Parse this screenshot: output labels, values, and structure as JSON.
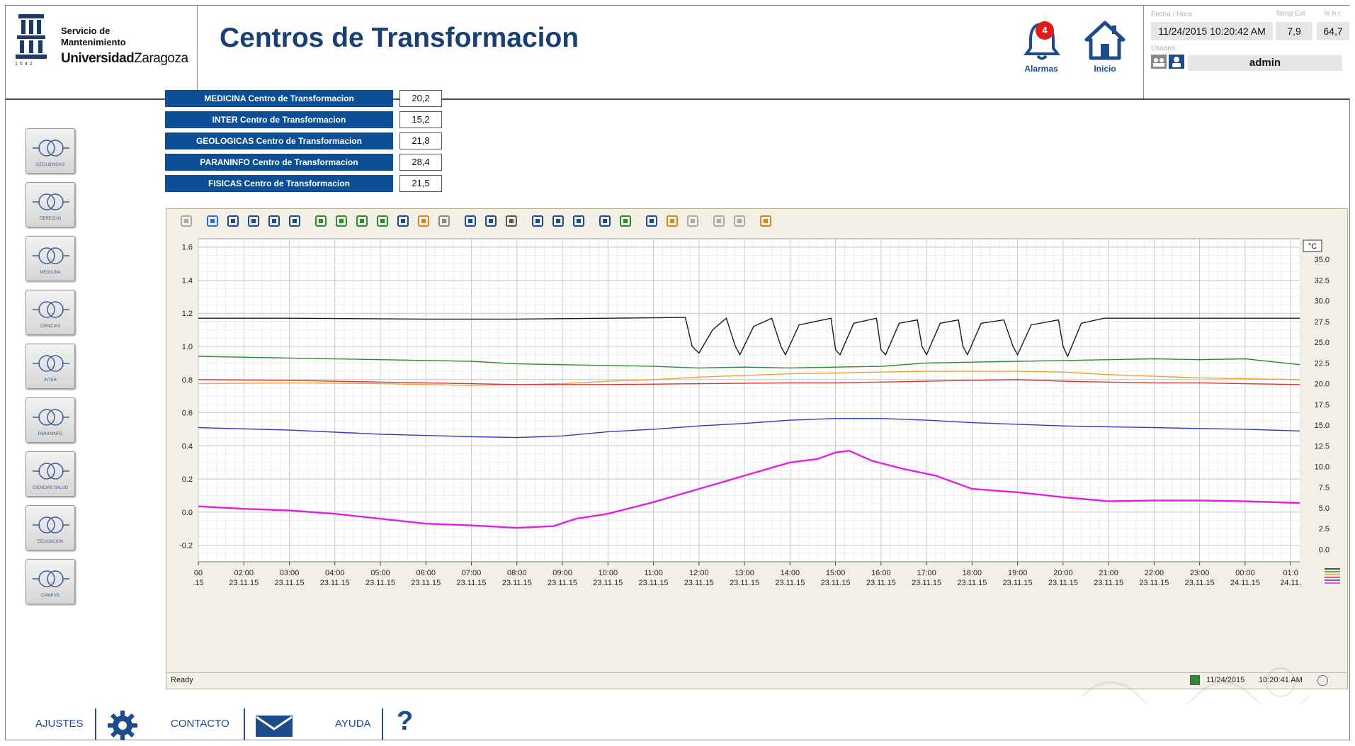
{
  "header": {
    "logo": {
      "line1": "Servicio de",
      "line2": "Mantenimiento",
      "univ_bold": "Universidad",
      "univ_rest": "Zaragoza",
      "year": "1542"
    },
    "title": "Centros de Transformacion",
    "alarms": {
      "label": "Alarmas",
      "count": "4"
    },
    "home": {
      "label": "Inicio"
    },
    "info": {
      "datetime_caption": "Fecha / Hora",
      "temp_caption": "Temp Ext",
      "humidity_caption": "% h.r.",
      "datetime": "11/24/2015 10:20:42 AM",
      "temp": "7,9",
      "humidity": "64,7",
      "user_caption": "Usuario",
      "user": "admin"
    }
  },
  "sidebar": {
    "items": [
      {
        "label": "GEOLOGICAS"
      },
      {
        "label": "DERECHO"
      },
      {
        "label": "MEDICINA"
      },
      {
        "label": "CIENCIAS"
      },
      {
        "label": "INTER"
      },
      {
        "label": "PARANINFO"
      },
      {
        "label": "CIENCIAS SALUD"
      },
      {
        "label": "EDUCACION"
      },
      {
        "label": "CAMPUS"
      }
    ]
  },
  "centers": [
    {
      "label": "MEDICINA Centro de Transformacion",
      "value": "20,2"
    },
    {
      "label": "INTER Centro de Transformacion",
      "value": "15,2"
    },
    {
      "label": "GEOLOGICAS Centro de Transformacion",
      "value": "21,8"
    },
    {
      "label": "PARANINFO Centro de Transformacion",
      "value": "28,4"
    },
    {
      "label": "FISICAS Centro de Transformacion",
      "value": "21,5"
    }
  ],
  "trend": {
    "toolbar_icons": [
      "help-icon",
      "export-icon",
      "first-icon",
      "prev-icon",
      "next-icon",
      "last-icon",
      "zoom-area-icon",
      "zoom-in-icon",
      "zoom-time-icon",
      "zoom-value-icon",
      "pan-icon",
      "move-axis-icon",
      "original-view-icon",
      "select-data-icon",
      "ruler-icon",
      "time-range-icon",
      "prev-view-icon",
      "next-view-icon",
      "stop-icon",
      "print-icon",
      "config-icon",
      "axis-icon",
      "value-axis-icon",
      "statistics-icon",
      "add-curve-icon",
      "delete-icon",
      "percent-icon"
    ],
    "status_text": "Ready",
    "status_date": "11/24/2015",
    "status_time": "10:20:41 AM"
  },
  "chart_data": {
    "type": "line",
    "left_axis": {
      "ylim": [
        -0.3,
        1.65
      ],
      "ticks": [
        "1.6",
        "1.4",
        "1.2",
        "1.0",
        "0.8",
        "0.6",
        "0.4",
        "0.2",
        "0.0",
        "-0.2"
      ]
    },
    "right_axis": {
      "label": "°C",
      "ylim": [
        -1.5,
        37.5
      ],
      "ticks": [
        "35.0",
        "32.5",
        "30.0",
        "27.5",
        "25.0",
        "22.5",
        "20.0",
        "17.5",
        "15.0",
        "12.5",
        "10.0",
        "7.5",
        "5.0",
        "2.5",
        "0.0"
      ]
    },
    "x_ticks": [
      {
        "time": "00",
        "date": ".15"
      },
      {
        "time": "02:00",
        "date": "23.11.15"
      },
      {
        "time": "03:00",
        "date": "23.11.15"
      },
      {
        "time": "04:00",
        "date": "23.11.15"
      },
      {
        "time": "05:00",
        "date": "23.11.15"
      },
      {
        "time": "06:00",
        "date": "23.11.15"
      },
      {
        "time": "07:00",
        "date": "23.11.15"
      },
      {
        "time": "08:00",
        "date": "23.11.15"
      },
      {
        "time": "09:00",
        "date": "23.11.15"
      },
      {
        "time": "10:00",
        "date": "23.11.15"
      },
      {
        "time": "11:00",
        "date": "23.11.15"
      },
      {
        "time": "12:00",
        "date": "23.11.15"
      },
      {
        "time": "13:00",
        "date": "23.11.15"
      },
      {
        "time": "14:00",
        "date": "23.11.15"
      },
      {
        "time": "15:00",
        "date": "23.11.15"
      },
      {
        "time": "16:00",
        "date": "23.11.15"
      },
      {
        "time": "17:00",
        "date": "23.11.15"
      },
      {
        "time": "18:00",
        "date": "23.11.15"
      },
      {
        "time": "19:00",
        "date": "23.11.15"
      },
      {
        "time": "20:00",
        "date": "23.11.15"
      },
      {
        "time": "21:00",
        "date": "23.11.15"
      },
      {
        "time": "22:00",
        "date": "23.11.15"
      },
      {
        "time": "23:00",
        "date": "23.11.15"
      },
      {
        "time": "00:00",
        "date": "24.11.15"
      },
      {
        "time": "01:0",
        "date": "24.11."
      }
    ],
    "x_hours": [
      1.0,
      2,
      3,
      4,
      5,
      6,
      7,
      8,
      9,
      10,
      11,
      12,
      13,
      14,
      15,
      16,
      17,
      18,
      19,
      20,
      21,
      22,
      23,
      24,
      25
    ],
    "x_range_hours": [
      1.0,
      25.2
    ],
    "series": [
      {
        "color": "#1a1a1a",
        "points": [
          [
            1.0,
            1.17
          ],
          [
            3,
            1.17
          ],
          [
            6,
            1.165
          ],
          [
            8,
            1.165
          ],
          [
            10,
            1.17
          ],
          [
            11.7,
            1.175
          ],
          [
            11.85,
            1.0
          ],
          [
            12.0,
            0.96
          ],
          [
            12.3,
            1.1
          ],
          [
            12.6,
            1.17
          ],
          [
            12.8,
            1.0
          ],
          [
            12.9,
            0.95
          ],
          [
            13.2,
            1.12
          ],
          [
            13.6,
            1.17
          ],
          [
            13.8,
            1.0
          ],
          [
            13.9,
            0.95
          ],
          [
            14.2,
            1.13
          ],
          [
            14.9,
            1.17
          ],
          [
            15.0,
            0.98
          ],
          [
            15.1,
            0.95
          ],
          [
            15.4,
            1.14
          ],
          [
            15.9,
            1.17
          ],
          [
            16.0,
            0.98
          ],
          [
            16.1,
            0.95
          ],
          [
            16.4,
            1.14
          ],
          [
            16.8,
            1.16
          ],
          [
            16.9,
            1.0
          ],
          [
            17.0,
            0.95
          ],
          [
            17.3,
            1.14
          ],
          [
            17.7,
            1.16
          ],
          [
            17.8,
            1.0
          ],
          [
            17.9,
            0.95
          ],
          [
            18.2,
            1.14
          ],
          [
            18.7,
            1.16
          ],
          [
            18.9,
            1.0
          ],
          [
            19.0,
            0.95
          ],
          [
            19.3,
            1.13
          ],
          [
            19.9,
            1.16
          ],
          [
            20.0,
            1.0
          ],
          [
            20.1,
            0.94
          ],
          [
            20.4,
            1.14
          ],
          [
            20.9,
            1.17
          ],
          [
            22,
            1.17
          ],
          [
            25.2,
            1.17
          ]
        ]
      },
      {
        "color": "#2e8b2e",
        "points": [
          [
            1.0,
            0.94
          ],
          [
            3,
            0.93
          ],
          [
            5,
            0.92
          ],
          [
            7,
            0.91
          ],
          [
            8,
            0.895
          ],
          [
            10,
            0.885
          ],
          [
            11,
            0.88
          ],
          [
            12,
            0.87
          ],
          [
            13,
            0.875
          ],
          [
            14,
            0.87
          ],
          [
            15,
            0.875
          ],
          [
            16,
            0.88
          ],
          [
            17,
            0.9
          ],
          [
            18,
            0.905
          ],
          [
            19,
            0.91
          ],
          [
            20,
            0.915
          ],
          [
            21,
            0.92
          ],
          [
            22,
            0.925
          ],
          [
            23,
            0.92
          ],
          [
            24,
            0.925
          ],
          [
            25.2,
            0.89
          ]
        ]
      },
      {
        "color": "#f0a030",
        "points": [
          [
            1.0,
            0.775
          ],
          [
            3,
            0.78
          ],
          [
            5,
            0.775
          ],
          [
            7,
            0.765
          ],
          [
            8,
            0.77
          ],
          [
            9,
            0.775
          ],
          [
            10,
            0.79
          ],
          [
            11,
            0.8
          ],
          [
            12,
            0.815
          ],
          [
            13,
            0.825
          ],
          [
            14,
            0.835
          ],
          [
            15,
            0.84
          ],
          [
            16,
            0.845
          ],
          [
            17,
            0.85
          ],
          [
            18,
            0.85
          ],
          [
            19,
            0.85
          ],
          [
            20,
            0.845
          ],
          [
            21,
            0.83
          ],
          [
            22,
            0.82
          ],
          [
            23,
            0.81
          ],
          [
            24,
            0.805
          ],
          [
            25.2,
            0.8
          ]
        ]
      },
      {
        "color": "#e03030",
        "points": [
          [
            1.0,
            0.8
          ],
          [
            3,
            0.795
          ],
          [
            5,
            0.785
          ],
          [
            7,
            0.775
          ],
          [
            8,
            0.77
          ],
          [
            10,
            0.77
          ],
          [
            12,
            0.775
          ],
          [
            14,
            0.78
          ],
          [
            15,
            0.78
          ],
          [
            16,
            0.785
          ],
          [
            17,
            0.79
          ],
          [
            18,
            0.795
          ],
          [
            19,
            0.8
          ],
          [
            20,
            0.79
          ],
          [
            21,
            0.785
          ],
          [
            22,
            0.78
          ],
          [
            23,
            0.78
          ],
          [
            24,
            0.775
          ],
          [
            25.2,
            0.77
          ]
        ]
      },
      {
        "color": "#3535c8",
        "points": [
          [
            1.0,
            0.51
          ],
          [
            3,
            0.495
          ],
          [
            5,
            0.47
          ],
          [
            7,
            0.455
          ],
          [
            8,
            0.45
          ],
          [
            9,
            0.46
          ],
          [
            10,
            0.485
          ],
          [
            11,
            0.5
          ],
          [
            12,
            0.52
          ],
          [
            13,
            0.535
          ],
          [
            14,
            0.555
          ],
          [
            15,
            0.565
          ],
          [
            16,
            0.565
          ],
          [
            17,
            0.555
          ],
          [
            18,
            0.54
          ],
          [
            19,
            0.53
          ],
          [
            20,
            0.52
          ],
          [
            21,
            0.515
          ],
          [
            22,
            0.51
          ],
          [
            23,
            0.505
          ],
          [
            24,
            0.5
          ],
          [
            25.2,
            0.49
          ]
        ]
      },
      {
        "color": "#e020e0",
        "points": [
          [
            1.0,
            0.035
          ],
          [
            2,
            0.02
          ],
          [
            3,
            0.01
          ],
          [
            4,
            -0.01
          ],
          [
            5,
            -0.04
          ],
          [
            6,
            -0.07
          ],
          [
            7,
            -0.08
          ],
          [
            8,
            -0.095
          ],
          [
            8.8,
            -0.085
          ],
          [
            9.3,
            -0.04
          ],
          [
            10,
            -0.01
          ],
          [
            11,
            0.06
          ],
          [
            12,
            0.14
          ],
          [
            13,
            0.22
          ],
          [
            14,
            0.3
          ],
          [
            14.6,
            0.32
          ],
          [
            15.0,
            0.36
          ],
          [
            15.3,
            0.37
          ],
          [
            15.8,
            0.31
          ],
          [
            16.5,
            0.26
          ],
          [
            17.2,
            0.22
          ],
          [
            18,
            0.14
          ],
          [
            19,
            0.12
          ],
          [
            20,
            0.09
          ],
          [
            21,
            0.065
          ],
          [
            22,
            0.07
          ],
          [
            23,
            0.07
          ],
          [
            24,
            0.065
          ],
          [
            25.2,
            0.055
          ]
        ]
      }
    ]
  },
  "footer": {
    "settings_label": "AJUSTES",
    "contact_label": "CONTACTO",
    "help_label": "AYUDA"
  }
}
